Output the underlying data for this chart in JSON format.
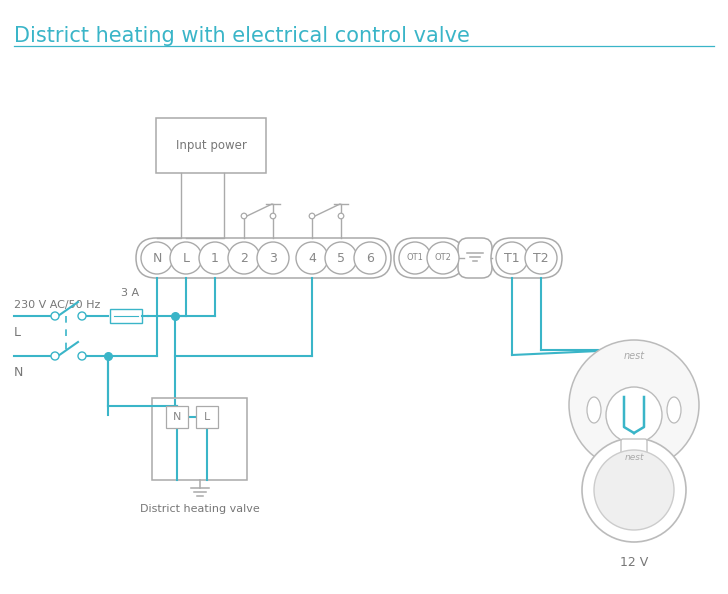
{
  "title": "District heating with electrical control valve",
  "title_color": "#3ab5c8",
  "title_fontsize": 15,
  "bg_color": "#ffffff",
  "line_color": "#3ab5c8",
  "gray": "#aaaaaa",
  "dark": "#888888",
  "text_dark": "#777777",
  "label_230v": "230 V AC/50 Hz",
  "label_l": "L",
  "label_n": "N",
  "label_3a": "3 A",
  "label_input_power": "Input power",
  "label_district_valve": "District heating valve",
  "label_12v": "12 V",
  "term_main": [
    "N",
    "L",
    "1",
    "2",
    "3",
    "4",
    "5",
    "6"
  ],
  "term_ot": [
    "OT1",
    "OT2"
  ],
  "term_t": [
    "T1",
    "T2"
  ]
}
